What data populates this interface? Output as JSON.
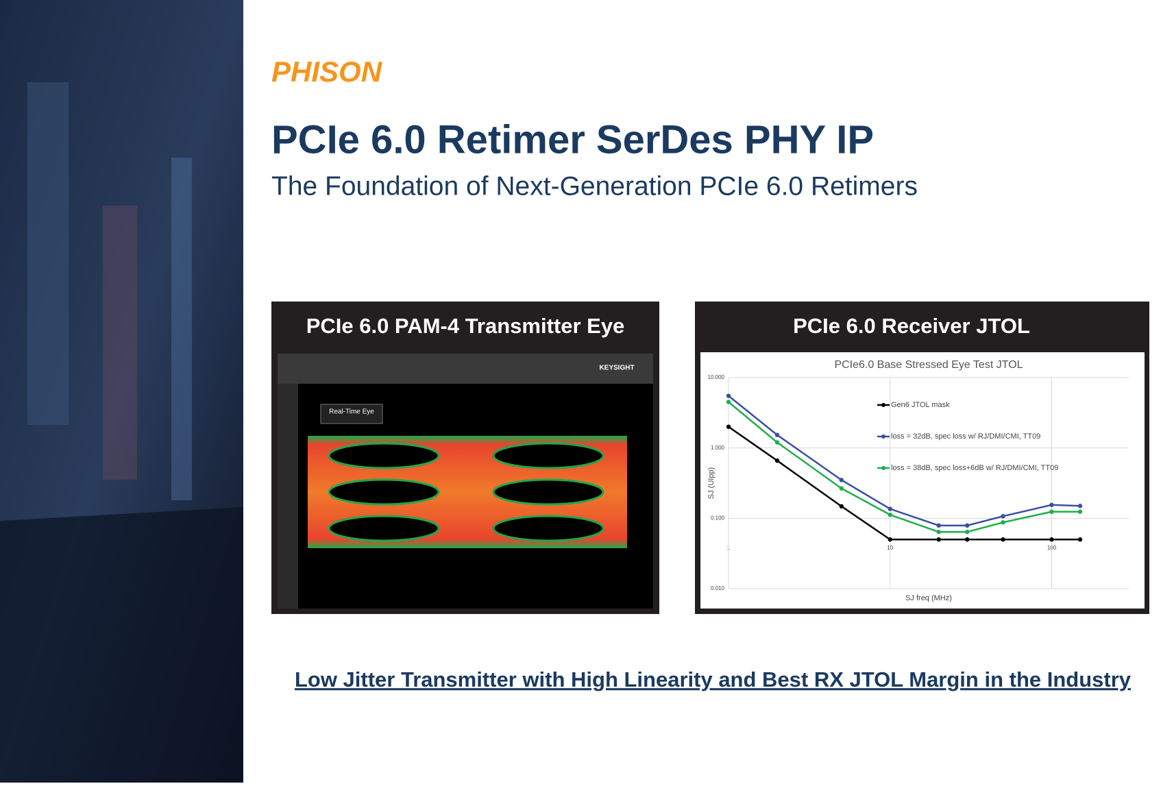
{
  "header": {
    "logo": "PHISON",
    "title": "PCIe 6.0 Retimer SerDes PHY IP",
    "subtitle": "The Foundation of Next-Generation PCIe 6.0 Retimers"
  },
  "panels": [
    {
      "title": "PCIe 6.0 PAM-4 Transmitter Eye",
      "scope": {
        "brand": "KEYSIGHT",
        "label": "Real-Time Eye"
      }
    },
    {
      "title": "PCIe 6.0 Receiver JTOL"
    }
  ],
  "chart_data": {
    "type": "line",
    "title": "PCIe6.0  Base Stressed Eye Test JTOL",
    "x_label": "SJ freq (MHz)",
    "y_label": "SJ (UIpp)",
    "x": [
      1,
      2,
      5,
      10,
      20,
      30,
      50,
      100,
      150
    ],
    "xlim": [
      1,
      300
    ],
    "ylim": [
      0.01,
      10
    ],
    "log_x": true,
    "log_y": true,
    "grid": true,
    "legend": "upper center",
    "xticks": [
      1,
      10,
      100
    ],
    "yticks": [
      {
        "value": 10,
        "label": "10.000"
      },
      {
        "value": 1,
        "label": "1.000"
      },
      {
        "value": 0.1,
        "label": "0.100"
      },
      {
        "value": 0.01,
        "label": "0.010"
      }
    ],
    "series": [
      {
        "name": "Gen6 JTOL mask",
        "color": "#000000",
        "values": [
          2.0,
          0.66,
          0.148,
          0.05,
          0.05,
          0.05,
          0.05,
          0.05,
          0.05
        ]
      },
      {
        "name": "loss = 32dB, spec loss w/ RJ/DMI/CMI, TT09",
        "color": "#3a4fa0",
        "values": [
          5.5,
          1.53,
          0.35,
          0.136,
          0.079,
          0.079,
          0.107,
          0.155,
          0.15
        ]
      },
      {
        "name": "loss = 38dB, spec loss+6dB w/ RJ/DMI/CMI, TT09",
        "color": "#1fae4b",
        "values": [
          4.5,
          1.2,
          0.266,
          0.112,
          0.064,
          0.064,
          0.0875,
          0.124,
          0.124
        ]
      }
    ]
  },
  "footer": "Low Jitter Transmitter with High Linearity and Best RX JTOL Margin in the Industry"
}
